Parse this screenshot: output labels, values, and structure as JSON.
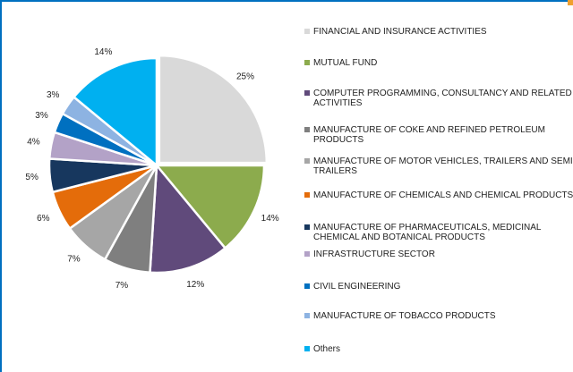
{
  "chart_data": {
    "type": "pie",
    "categories": [
      "FINANCIAL AND INSURANCE ACTIVITIES",
      "MUTUAL FUND",
      "COMPUTER PROGRAMMING, CONSULTANCY AND RELATED ACTIVITIES",
      "MANUFACTURE OF COKE AND REFINED PETROLEUM PRODUCTS",
      "MANUFACTURE OF MOTOR VEHICLES, TRAILERS AND SEMI-TRAILERS",
      "MANUFACTURE OF CHEMICALS AND CHEMICAL PRODUCTS",
      "MANUFACTURE OF PHARMACEUTICALS, MEDICINAL CHEMICAL AND BOTANICAL PRODUCTS",
      "INFRASTRUCTURE SECTOR",
      "CIVIL ENGINEERING",
      "MANUFACTURE OF TOBACCO PRODUCTS",
      "Others"
    ],
    "values": [
      25,
      14,
      12,
      7,
      7,
      6,
      5,
      4,
      3,
      3,
      14
    ],
    "value_labels": [
      "25%",
      "14%",
      "12%",
      "7%",
      "7%",
      "6%",
      "5%",
      "4%",
      "3%",
      "3%",
      "14%"
    ],
    "colors": [
      "#d9d9d9",
      "#8cab4d",
      "#604a7b",
      "#7f7f7f",
      "#a6a6a6",
      "#e46c0a",
      "#17375e",
      "#b3a2c7",
      "#0070c0",
      "#8db3e2",
      "#00b0f0"
    ],
    "legend": "right"
  }
}
